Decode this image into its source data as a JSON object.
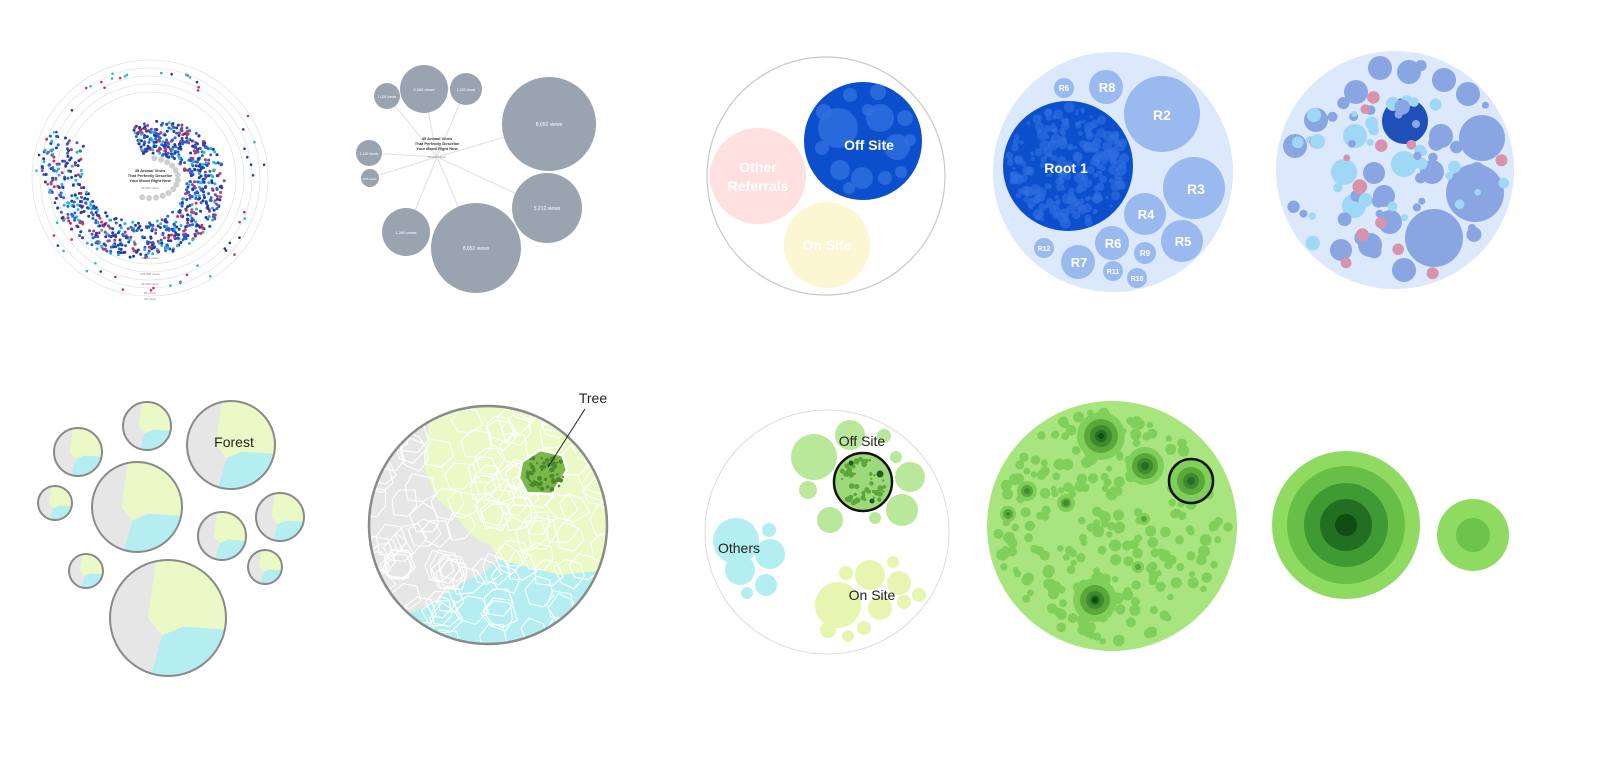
{
  "panels": {
    "scatter_swirl": {
      "title_lines": [
        "45 Animal Vines",
        "That Perfectly Describe",
        "Your Mood Right Now"
      ],
      "sub": "##,### views",
      "ring_labels": [
        "##,### views",
        "###,### views",
        "##,### views",
        "## views",
        "## views"
      ],
      "colors": {
        "dot_main": "#1f3fa8",
        "dot_mid": "#2a62d9",
        "dot_accent": "#d32f5c",
        "dot_light": "#22b7e6",
        "ring": "#dcdcdc"
      }
    },
    "grey_bubbles": {
      "center_title": [
        "45 Animal Vines",
        "That Perfectly Describe",
        "Your Mood Right Now"
      ],
      "center_sub": "##,### views",
      "bubbles": [
        {
          "label": "8,652 views"
        },
        {
          "label": "5,212 views"
        },
        {
          "label": "8,652 views"
        },
        {
          "label": "1,260 views"
        },
        {
          "label": "1,024 views"
        },
        {
          "label": "1,126 views"
        },
        {
          "label": "2,085 views"
        },
        {
          "label": "1,025 views"
        },
        {
          "label": "870 views"
        }
      ],
      "colors": {
        "bubble": "#9aa3b0",
        "text": "#ffffff",
        "line": "#dde0e4"
      }
    },
    "referrals": {
      "off_site": "Off Site",
      "other_referrals": [
        "Other",
        "Referrals"
      ],
      "on_site": "On Site",
      "colors": {
        "off_site": "#0b4fcc",
        "other": "#fde0df",
        "on_site": "#fdf6d3",
        "outline": "#c8c8c8"
      }
    },
    "roots": {
      "labels": [
        "Root 1",
        "R2",
        "R3",
        "R4",
        "R5",
        "R6",
        "R7",
        "R8",
        "R6",
        "R9",
        "R10",
        "R11",
        "R12"
      ],
      "colors": {
        "bg": "#dce8fb",
        "root": "#0b4fcc",
        "node": "#9ab9ee"
      }
    },
    "mixed_blue": {
      "colors": {
        "bg": "#dce8fb",
        "dark": "#1f4fb8",
        "mid": "#8aa6e2",
        "light": "#9fd7f7",
        "pink": "#d893ac"
      }
    },
    "forest_small_multiples": {
      "label": "Forest",
      "colors": {
        "green": "#eaf9c6",
        "grey": "#e6e6e6",
        "cyan": "#b4eef0",
        "outline": "#8a8a8a"
      }
    },
    "forest_zoom": {
      "label": "Tree",
      "colors": {
        "green": "#eaf9c6",
        "grey": "#e6e6e6",
        "cyan": "#b4eef0",
        "highlight": "#7ab84a"
      }
    },
    "green_sites": {
      "off_site": "Off Site",
      "others": "Others",
      "on_site": "On Site",
      "colors": {
        "green": "#b9e89a",
        "cyan": "#b3eef1",
        "yellow": "#e6f6b1"
      }
    },
    "green_nested": {
      "colors": {
        "bg": "#a8e57f",
        "bubble": "#7fcf5a",
        "dark": "#1e5e1e"
      }
    },
    "green_concentric": {
      "colors": {
        "c1": "#8fdb62",
        "c2": "#67bf47",
        "c3": "#3f9a33",
        "c4": "#236f22",
        "c5": "#0f4d12"
      }
    }
  }
}
